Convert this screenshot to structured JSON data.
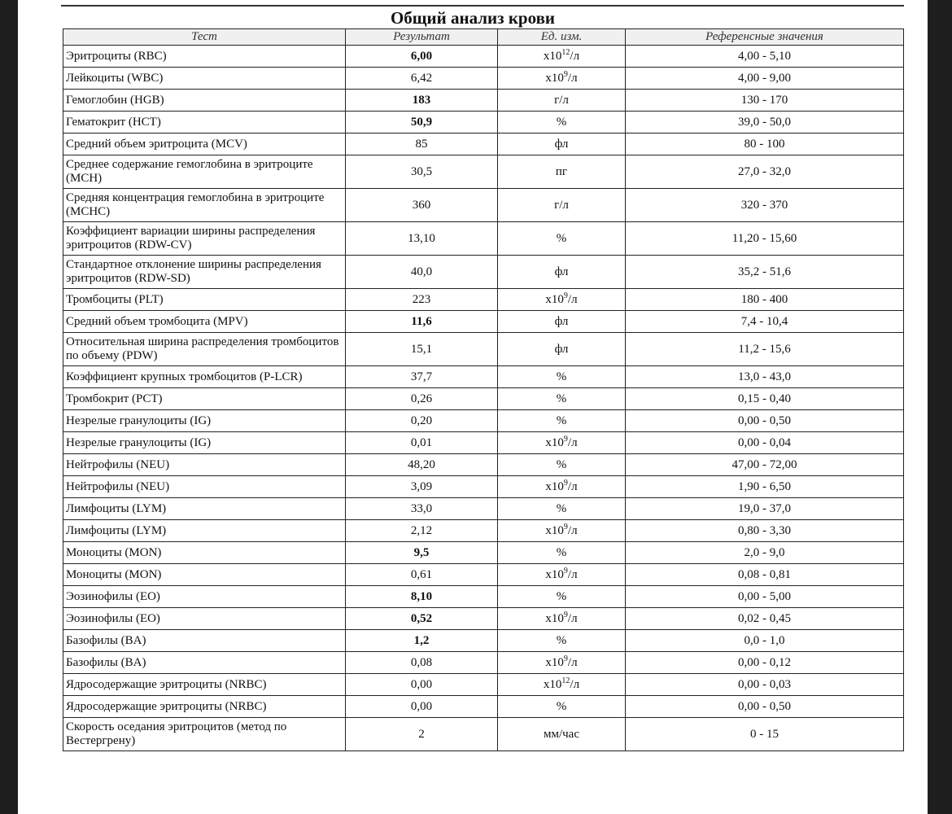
{
  "title": "Общий анализ крови",
  "headers": [
    "Тест",
    "Результат",
    "Ед. изм.",
    "Референсные значения"
  ],
  "rows": [
    {
      "test": "Эритроциты (RBC)",
      "result": "6,00",
      "bold": true,
      "unit": "x10",
      "sup": "12",
      "unit_tail": "/л",
      "ref": "4,00 - 5,10"
    },
    {
      "test": "Лейкоциты (WBC)",
      "result": "6,42",
      "bold": false,
      "unit": "x10",
      "sup": "9",
      "unit_tail": "/л",
      "ref": "4,00 - 9,00"
    },
    {
      "test": "Гемоглобин (HGB)",
      "result": "183",
      "bold": true,
      "unit": "г/л",
      "ref": "130 - 170"
    },
    {
      "test": "Гематокрит (HCT)",
      "result": "50,9",
      "bold": true,
      "unit": "%",
      "ref": "39,0 - 50,0"
    },
    {
      "test": "Средний объем эритроцита (MCV)",
      "result": "85",
      "bold": false,
      "unit": "фл",
      "ref": "80 - 100"
    },
    {
      "test": "Среднее содержание гемоглобина в эритроците (MCH)",
      "result": "30,5",
      "bold": false,
      "unit": "пг",
      "ref": "27,0 - 32,0",
      "double": true
    },
    {
      "test": "Средняя концентрация гемоглобина в эритроците (MCHC)",
      "result": "360",
      "bold": false,
      "unit": "г/л",
      "ref": "320 - 370",
      "double": true
    },
    {
      "test": "Коэффициент вариации ширины распределения эритроцитов (RDW-CV)",
      "result": "13,10",
      "bold": false,
      "unit": "%",
      "ref": "11,20 - 15,60",
      "double": true
    },
    {
      "test": "Стандартное отклонение ширины распределения эритроцитов (RDW-SD)",
      "result": "40,0",
      "bold": false,
      "unit": "фл",
      "ref": "35,2 - 51,6",
      "double": true
    },
    {
      "test": "Тромбоциты (PLT)",
      "result": "223",
      "bold": false,
      "unit": "x10",
      "sup": "9",
      "unit_tail": "/л",
      "ref": "180 - 400"
    },
    {
      "test": "Средний объем тромбоцита (MPV)",
      "result": "11,6",
      "bold": true,
      "unit": "фл",
      "ref": "7,4 - 10,4"
    },
    {
      "test": "Относительная ширина распределения тромбоцитов по объему (PDW)",
      "result": "15,1",
      "bold": false,
      "unit": "фл",
      "ref": "11,2 - 15,6",
      "double": true
    },
    {
      "test": "Коэффициент крупных тромбоцитов (P-LCR)",
      "result": "37,7",
      "bold": false,
      "unit": "%",
      "ref": "13,0 - 43,0"
    },
    {
      "test": "Тромбокрит (PCT)",
      "result": "0,26",
      "bold": false,
      "unit": "%",
      "ref": "0,15 - 0,40"
    },
    {
      "test": "Незрелые гранулоциты (IG)",
      "result": "0,20",
      "bold": false,
      "unit": "%",
      "ref": "0,00 - 0,50"
    },
    {
      "test": "Незрелые гранулоциты (IG)",
      "result": "0,01",
      "bold": false,
      "unit": "x10",
      "sup": "9",
      "unit_tail": "/л",
      "ref": "0,00 - 0,04"
    },
    {
      "test": "Нейтрофилы (NEU)",
      "result": "48,20",
      "bold": false,
      "unit": "%",
      "ref": "47,00 - 72,00"
    },
    {
      "test": "Нейтрофилы (NEU)",
      "result": "3,09",
      "bold": false,
      "unit": "x10",
      "sup": "9",
      "unit_tail": "/л",
      "ref": "1,90 - 6,50"
    },
    {
      "test": "Лимфоциты (LYM)",
      "result": "33,0",
      "bold": false,
      "unit": "%",
      "ref": "19,0 - 37,0"
    },
    {
      "test": "Лимфоциты (LYM)",
      "result": "2,12",
      "bold": false,
      "unit": "x10",
      "sup": "9",
      "unit_tail": "/л",
      "ref": "0,80 - 3,30"
    },
    {
      "test": "Моноциты (MON)",
      "result": "9,5",
      "bold": true,
      "unit": "%",
      "ref": "2,0 - 9,0"
    },
    {
      "test": "Моноциты (MON)",
      "result": "0,61",
      "bold": false,
      "unit": "x10",
      "sup": "9",
      "unit_tail": "/л",
      "ref": "0,08 - 0,81"
    },
    {
      "test": "Эозинофилы (EO)",
      "result": "8,10",
      "bold": true,
      "unit": "%",
      "ref": "0,00 - 5,00"
    },
    {
      "test": "Эозинофилы (EO)",
      "result": "0,52",
      "bold": true,
      "unit": "x10",
      "sup": "9",
      "unit_tail": "/л",
      "ref": "0,02 - 0,45"
    },
    {
      "test": "Базофилы (BA)",
      "result": "1,2",
      "bold": true,
      "unit": "%",
      "ref": "0,0 - 1,0"
    },
    {
      "test": "Базофилы (BA)",
      "result": "0,08",
      "bold": false,
      "unit": "x10",
      "sup": "9",
      "unit_tail": "/л",
      "ref": "0,00 - 0,12"
    },
    {
      "test": "Ядросодержащие эритроциты (NRBC)",
      "result": "0,00",
      "bold": false,
      "unit": "x10",
      "sup": "12",
      "unit_tail": "/л",
      "ref": "0,00 - 0,03"
    },
    {
      "test": "Ядросодержащие эритроциты (NRBC)",
      "result": "0,00",
      "bold": false,
      "unit": "%",
      "ref": "0,00 - 0,50"
    },
    {
      "test": "Скорость оседания эритроцитов (метод по Вестергрену)",
      "result": "2",
      "bold": false,
      "unit": "мм/час",
      "ref": "0 - 15",
      "double": true
    }
  ]
}
